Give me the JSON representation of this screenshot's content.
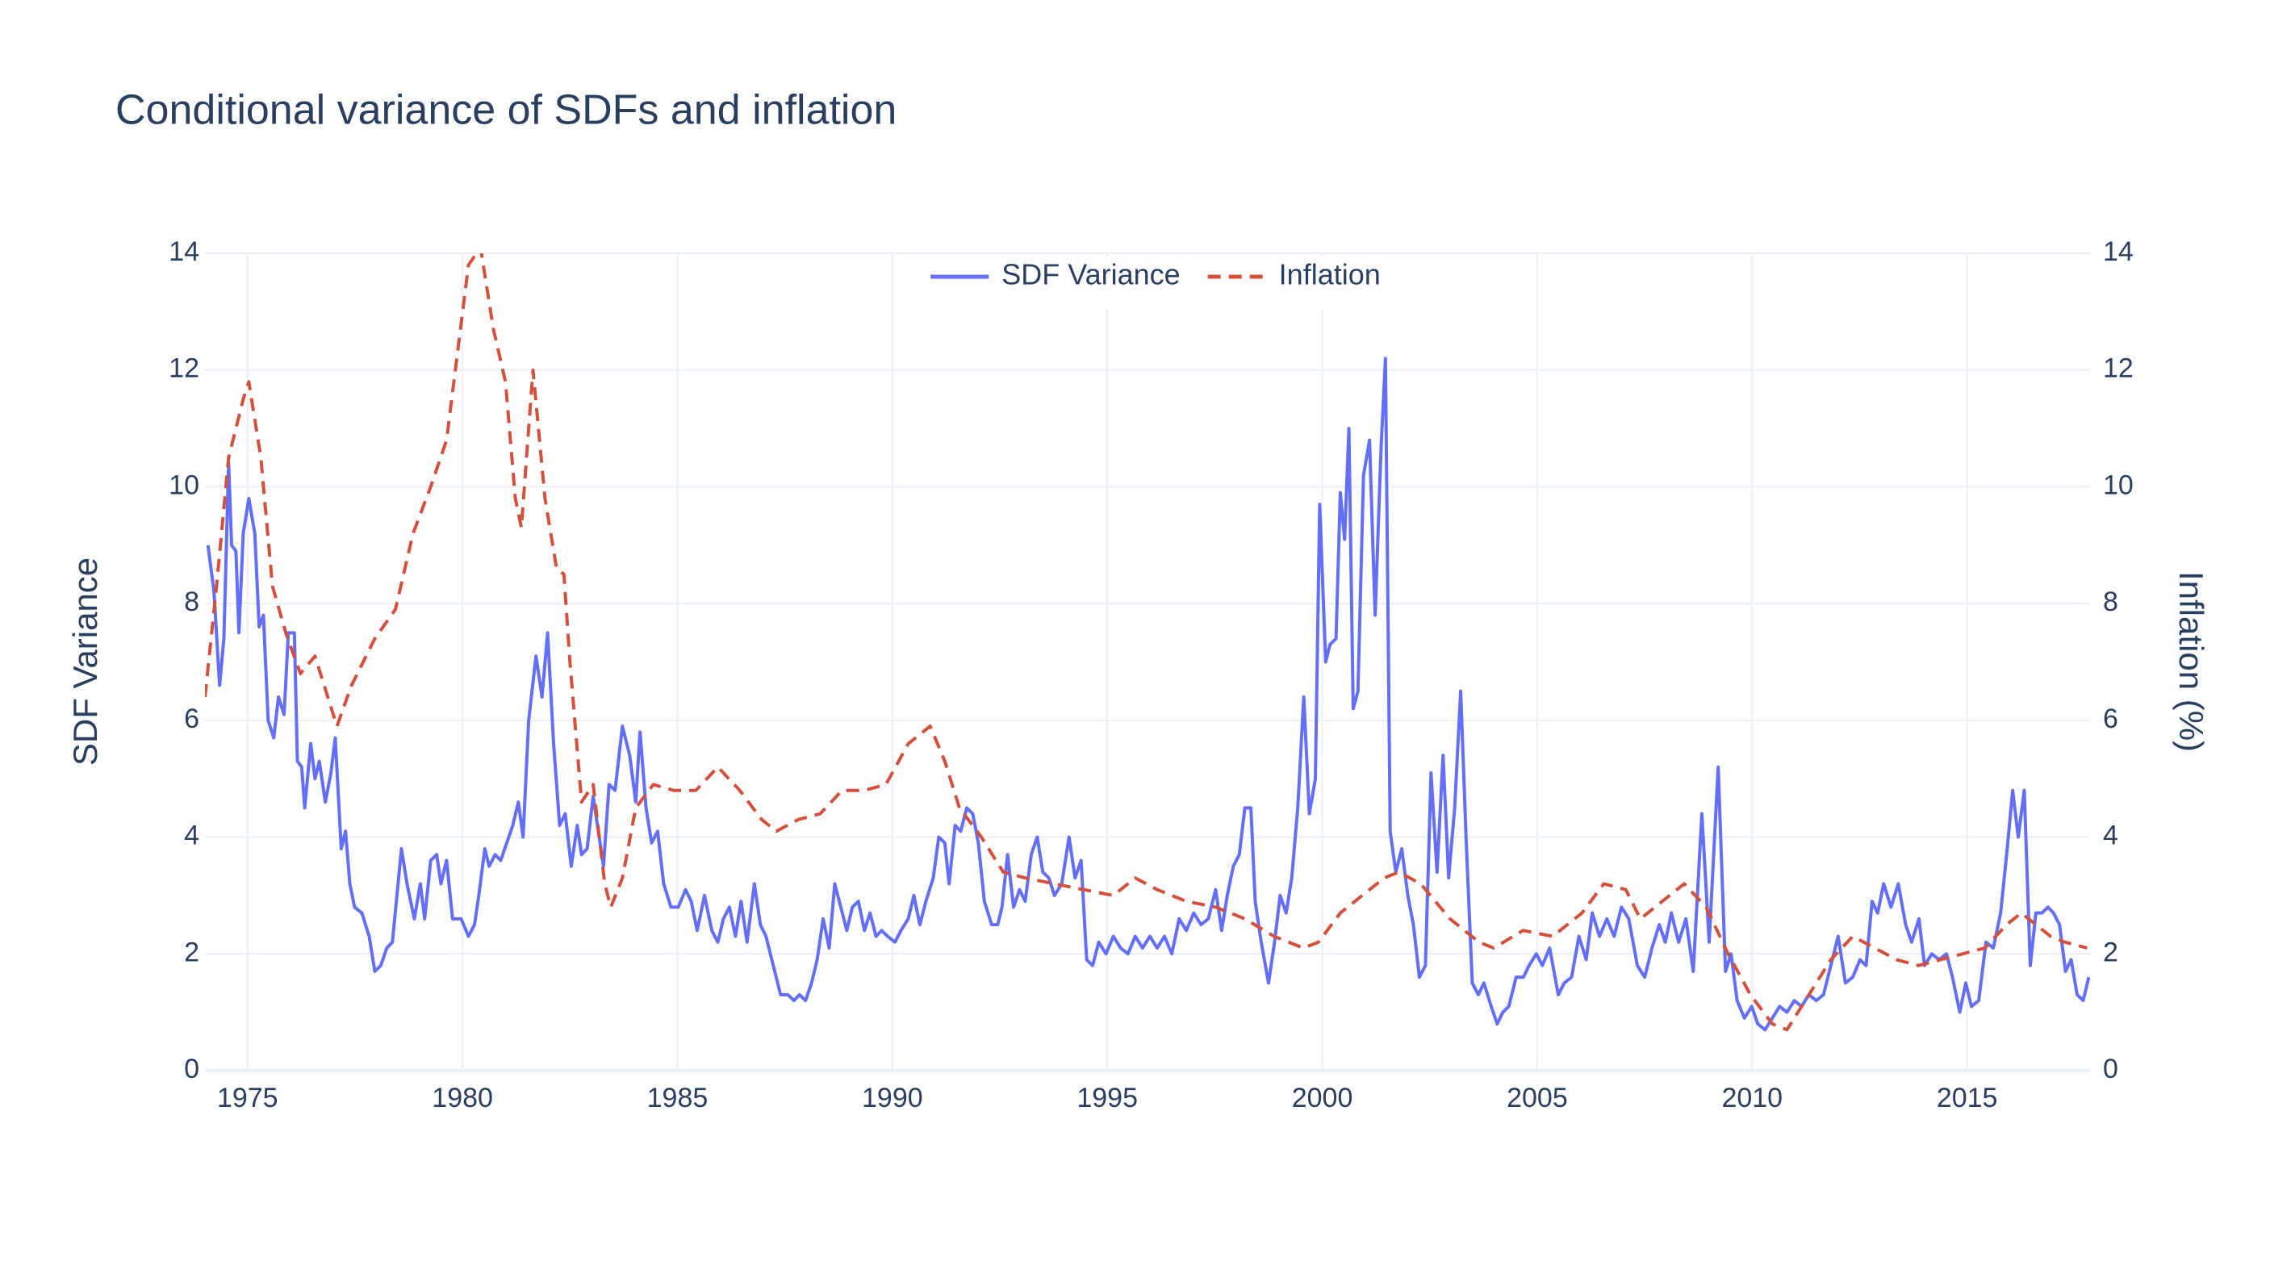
{
  "chart_data": {
    "type": "line",
    "title": "Conditional variance of SDFs and inflation",
    "y_label": "SDF Variance",
    "y2_label": "Inflation (%)",
    "xlim": [
      1974.01,
      2017.86
    ],
    "xticks": [
      1975,
      1980,
      1985,
      1990,
      1995,
      2000,
      2005,
      2010,
      2015
    ],
    "ylim": [
      0,
      14
    ],
    "yticks": [
      0,
      2,
      4,
      6,
      8,
      10,
      12,
      14
    ],
    "y2lim": [
      0,
      14
    ],
    "y2ticks": [
      0,
      2,
      4,
      6,
      8,
      10,
      12,
      14
    ],
    "grid": true,
    "legend": "top",
    "series": [
      {
        "name": "SDF Variance",
        "color": "#636efa",
        "dash": "solid",
        "x": [
          1974.08,
          1974.22,
          1974.35,
          1974.45,
          1974.56,
          1974.63,
          1974.73,
          1974.8,
          1974.9,
          1975.03,
          1975.17,
          1975.27,
          1975.37,
          1975.48,
          1975.61,
          1975.72,
          1975.85,
          1975.95,
          1976.09,
          1976.16,
          1976.26,
          1976.33,
          1976.47,
          1976.57,
          1976.67,
          1976.81,
          1976.94,
          1977.04,
          1977.18,
          1977.28,
          1977.38,
          1977.49,
          1977.66,
          1977.83,
          1977.96,
          1978.1,
          1978.24,
          1978.37,
          1978.58,
          1978.71,
          1978.88,
          1979.02,
          1979.12,
          1979.26,
          1979.4,
          1979.5,
          1979.63,
          1979.77,
          1979.97,
          1980.14,
          1980.28,
          1980.38,
          1980.52,
          1980.62,
          1980.76,
          1980.89,
          1981.03,
          1981.17,
          1981.3,
          1981.41,
          1981.54,
          1981.71,
          1981.85,
          1981.98,
          1982.12,
          1982.26,
          1982.39,
          1982.53,
          1982.67,
          1982.77,
          1982.9,
          1983.04,
          1983.18,
          1983.28,
          1983.41,
          1983.55,
          1983.72,
          1983.89,
          1984.03,
          1984.13,
          1984.27,
          1984.4,
          1984.54,
          1984.68,
          1984.85,
          1985.02,
          1985.19,
          1985.32,
          1985.46,
          1985.63,
          1985.8,
          1985.94,
          1986.07,
          1986.21,
          1986.35,
          1986.48,
          1986.62,
          1986.79,
          1986.93,
          1987.06,
          1987.23,
          1987.4,
          1987.57,
          1987.71,
          1987.84,
          1987.98,
          1988.12,
          1988.25,
          1988.39,
          1988.53,
          1988.66,
          1988.8,
          1988.94,
          1989.07,
          1989.21,
          1989.35,
          1989.48,
          1989.62,
          1989.75,
          1989.89,
          1990.06,
          1990.2,
          1990.37,
          1990.5,
          1990.64,
          1990.78,
          1990.95,
          1991.08,
          1991.22,
          1991.32,
          1991.46,
          1991.59,
          1991.73,
          1991.87,
          1992.0,
          1992.14,
          1992.31,
          1992.45,
          1992.55,
          1992.68,
          1992.82,
          1992.96,
          1993.09,
          1993.23,
          1993.37,
          1993.5,
          1993.64,
          1993.77,
          1993.94,
          1994.11,
          1994.25,
          1994.39,
          1994.52,
          1994.66,
          1994.8,
          1994.97,
          1995.14,
          1995.31,
          1995.48,
          1995.65,
          1995.82,
          1995.99,
          1996.16,
          1996.33,
          1996.5,
          1996.67,
          1996.84,
          1997.01,
          1997.18,
          1997.35,
          1997.52,
          1997.66,
          1997.79,
          1997.93,
          1998.07,
          1998.2,
          1998.34,
          1998.44,
          1998.58,
          1998.75,
          1998.89,
          1999.02,
          1999.16,
          1999.29,
          1999.43,
          1999.57,
          1999.7,
          1999.84,
          1999.94,
          2000.08,
          2000.18,
          2000.32,
          2000.42,
          2000.52,
          2000.62,
          2000.72,
          2000.83,
          2000.96,
          2001.1,
          2001.23,
          2001.37,
          2001.47,
          2001.58,
          2001.71,
          2001.85,
          2001.99,
          2002.12,
          2002.26,
          2002.4,
          2002.53,
          2002.67,
          2002.81,
          2002.94,
          2003.08,
          2003.22,
          2003.35,
          2003.49,
          2003.63,
          2003.76,
          2003.93,
          2004.07,
          2004.2,
          2004.34,
          2004.51,
          2004.68,
          2004.81,
          2004.98,
          2005.12,
          2005.29,
          2005.49,
          2005.63,
          2005.8,
          2005.97,
          2006.14,
          2006.28,
          2006.45,
          2006.62,
          2006.79,
          2006.96,
          2007.13,
          2007.33,
          2007.5,
          2007.67,
          2007.84,
          2007.98,
          2008.12,
          2008.29,
          2008.46,
          2008.63,
          2008.83,
          2009.0,
          2009.21,
          2009.38,
          2009.51,
          2009.65,
          2009.82,
          2009.99,
          2010.13,
          2010.3,
          2010.47,
          2010.64,
          2010.81,
          2010.98,
          2011.15,
          2011.32,
          2011.49,
          2011.66,
          2011.83,
          2012.0,
          2012.17,
          2012.34,
          2012.51,
          2012.65,
          2012.79,
          2012.92,
          2013.06,
          2013.23,
          2013.4,
          2013.57,
          2013.71,
          2013.88,
          2014.01,
          2014.18,
          2014.35,
          2014.52,
          2014.66,
          2014.83,
          2014.97,
          2015.1,
          2015.27,
          2015.44,
          2015.61,
          2015.78,
          2015.92,
          2016.06,
          2016.19,
          2016.33,
          2016.47,
          2016.6,
          2016.74,
          2016.88,
          2017.01,
          2017.15,
          2017.29,
          2017.42,
          2017.56,
          2017.7,
          2017.83
        ],
        "values": [
          9.0,
          8.2,
          6.6,
          7.4,
          10.4,
          9.0,
          8.9,
          7.5,
          9.2,
          9.8,
          9.2,
          7.6,
          7.8,
          6.0,
          5.7,
          6.4,
          6.1,
          7.5,
          7.5,
          5.3,
          5.2,
          4.5,
          5.6,
          5.0,
          5.3,
          4.6,
          5.1,
          5.7,
          3.8,
          4.1,
          3.2,
          2.8,
          2.7,
          2.3,
          1.7,
          1.8,
          2.1,
          2.2,
          3.8,
          3.2,
          2.6,
          3.2,
          2.6,
          3.6,
          3.7,
          3.2,
          3.6,
          2.6,
          2.6,
          2.3,
          2.5,
          3.0,
          3.8,
          3.5,
          3.7,
          3.6,
          3.9,
          4.2,
          4.6,
          4.0,
          6.0,
          7.1,
          6.4,
          7.5,
          5.6,
          4.2,
          4.4,
          3.5,
          4.2,
          3.7,
          3.8,
          4.7,
          4.0,
          3.5,
          4.9,
          4.8,
          5.9,
          5.4,
          4.6,
          5.8,
          4.5,
          3.9,
          4.1,
          3.2,
          2.8,
          2.8,
          3.1,
          2.9,
          2.4,
          3.0,
          2.4,
          2.2,
          2.6,
          2.8,
          2.3,
          2.9,
          2.2,
          3.2,
          2.5,
          2.3,
          1.8,
          1.3,
          1.3,
          1.2,
          1.3,
          1.2,
          1.5,
          1.9,
          2.6,
          2.1,
          3.2,
          2.8,
          2.4,
          2.8,
          2.9,
          2.4,
          2.7,
          2.3,
          2.4,
          2.3,
          2.2,
          2.4,
          2.6,
          3.0,
          2.5,
          2.9,
          3.3,
          4.0,
          3.9,
          3.2,
          4.2,
          4.1,
          4.5,
          4.4,
          3.9,
          2.9,
          2.5,
          2.5,
          2.8,
          3.7,
          2.8,
          3.1,
          2.9,
          3.7,
          4.0,
          3.4,
          3.3,
          3.0,
          3.2,
          4.0,
          3.3,
          3.6,
          1.9,
          1.8,
          2.2,
          2.0,
          2.3,
          2.1,
          2.0,
          2.3,
          2.1,
          2.3,
          2.1,
          2.3,
          2.0,
          2.6,
          2.4,
          2.7,
          2.5,
          2.6,
          3.1,
          2.4,
          3.0,
          3.5,
          3.7,
          4.5,
          4.5,
          2.9,
          2.2,
          1.5,
          2.2,
          3.0,
          2.7,
          3.3,
          4.5,
          6.4,
          4.4,
          5.0,
          9.7,
          7.0,
          7.3,
          7.4,
          9.9,
          9.1,
          11.0,
          6.2,
          6.5,
          10.2,
          10.8,
          7.8,
          10.7,
          12.2,
          4.1,
          3.4,
          3.8,
          3.0,
          2.5,
          1.6,
          1.8,
          5.1,
          3.4,
          5.4,
          3.3,
          4.5,
          6.5,
          3.9,
          1.5,
          1.3,
          1.5,
          1.1,
          0.8,
          1.0,
          1.1,
          1.6,
          1.6,
          1.8,
          2.0,
          1.8,
          2.1,
          1.3,
          1.5,
          1.6,
          2.3,
          1.9,
          2.7,
          2.3,
          2.6,
          2.3,
          2.8,
          2.6,
          1.8,
          1.6,
          2.1,
          2.5,
          2.2,
          2.7,
          2.2,
          2.6,
          1.7,
          4.4,
          2.2,
          5.2,
          1.7,
          2.0,
          1.2,
          0.9,
          1.1,
          0.8,
          0.7,
          0.9,
          1.1,
          1.0,
          1.2,
          1.1,
          1.3,
          1.2,
          1.3,
          1.8,
          2.3,
          1.5,
          1.6,
          1.9,
          1.8,
          2.9,
          2.7,
          3.2,
          2.8,
          3.2,
          2.5,
          2.2,
          2.6,
          1.8,
          2.0,
          1.9,
          2.0,
          1.6,
          1.0,
          1.5,
          1.1,
          1.2,
          2.2,
          2.1,
          2.7,
          3.7,
          4.8,
          4.0,
          4.8,
          1.8,
          2.7,
          2.7,
          2.8,
          2.7,
          2.5,
          1.7,
          1.9,
          1.3,
          1.2,
          1.6
        ]
      },
      {
        "name": "Inflation",
        "color": "#d4503c",
        "dash": "dash",
        "axis": "y2",
        "x": [
          1974.01,
          1974.28,
          1974.56,
          1974.9,
          1975.03,
          1975.31,
          1975.58,
          1975.89,
          1976.23,
          1976.57,
          1976.91,
          1977.08,
          1977.42,
          1977.96,
          1978.44,
          1978.85,
          1979.26,
          1979.63,
          1979.97,
          1980.14,
          1980.42,
          1980.72,
          1981.0,
          1981.23,
          1981.37,
          1981.64,
          1981.92,
          1982.19,
          1982.36,
          1982.5,
          1982.77,
          1983.04,
          1983.31,
          1983.45,
          1983.72,
          1984.03,
          1984.44,
          1984.91,
          1985.43,
          1985.94,
          1986.45,
          1986.96,
          1987.3,
          1987.81,
          1988.32,
          1988.83,
          1989.34,
          1989.85,
          1990.37,
          1990.88,
          1991.22,
          1991.56,
          1992.07,
          1992.58,
          1993.09,
          1993.77,
          1994.45,
          1995.14,
          1995.65,
          1996.16,
          1996.84,
          1997.52,
          1998.2,
          1998.88,
          1999.56,
          1999.91,
          2000.42,
          2000.93,
          2001.44,
          2001.78,
          2002.29,
          2002.97,
          2003.65,
          2003.99,
          2004.67,
          2005.36,
          2006.04,
          2006.55,
          2007.06,
          2007.4,
          2007.91,
          2008.42,
          2008.93,
          2009.44,
          2009.96,
          2010.47,
          2010.81,
          2011.32,
          2011.83,
          2012.34,
          2012.85,
          2013.36,
          2013.87,
          2014.38,
          2014.9,
          2015.41,
          2015.92,
          2016.26,
          2016.6,
          2016.94,
          2017.28,
          2017.79
        ],
        "values": [
          6.4,
          8.3,
          10.5,
          11.5,
          11.8,
          10.5,
          8.3,
          7.5,
          6.8,
          7.1,
          6.3,
          5.9,
          6.6,
          7.4,
          7.9,
          9.2,
          10.0,
          10.8,
          12.8,
          13.8,
          14.1,
          12.7,
          11.8,
          9.8,
          9.3,
          12.0,
          9.8,
          8.6,
          8.5,
          7.0,
          4.6,
          4.9,
          3.2,
          2.8,
          3.3,
          4.5,
          4.9,
          4.8,
          4.8,
          5.2,
          4.8,
          4.3,
          4.1,
          4.3,
          4.4,
          4.8,
          4.8,
          4.9,
          5.6,
          5.9,
          5.3,
          4.5,
          4.0,
          3.4,
          3.3,
          3.2,
          3.1,
          3.0,
          3.3,
          3.1,
          2.9,
          2.8,
          2.6,
          2.3,
          2.1,
          2.2,
          2.7,
          3.0,
          3.3,
          3.4,
          3.2,
          2.6,
          2.2,
          2.1,
          2.4,
          2.3,
          2.7,
          3.2,
          3.1,
          2.6,
          2.9,
          3.2,
          2.8,
          2.0,
          1.3,
          0.8,
          0.7,
          1.3,
          1.9,
          2.3,
          2.1,
          1.9,
          1.8,
          1.9,
          2.0,
          2.1,
          2.5,
          2.7,
          2.5,
          2.3,
          2.2,
          2.1
        ]
      }
    ]
  }
}
